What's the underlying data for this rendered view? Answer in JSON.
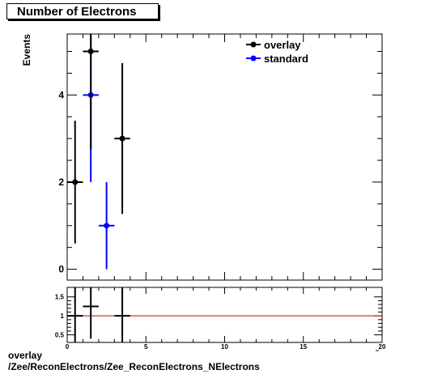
{
  "title": "Number of Electrons",
  "footer": {
    "line1": "overlay",
    "line2": "/Zee/ReconElectrons/Zee_ReconElectrons_NElectrons"
  },
  "chart_data": [
    {
      "type": "scatter",
      "title": "Number of Electrons",
      "ylabel": "Events",
      "xlim": [
        0,
        20
      ],
      "ylim": [
        -0.25,
        5.4
      ],
      "y_ticks": [
        0,
        2,
        4
      ],
      "legend_placement": "top-right",
      "series": [
        {
          "name": "overlay",
          "color": "#000000",
          "points": [
            {
              "x": 0.5,
              "xerr": 0.5,
              "y": 2,
              "yerr_low": 1.41,
              "yerr_high": 1.41
            },
            {
              "x": 1.5,
              "xerr": 0.5,
              "y": 5,
              "yerr_low": 2.24,
              "yerr_high": 2.24
            },
            {
              "x": 3.5,
              "xerr": 0.5,
              "y": 3,
              "yerr_low": 1.73,
              "yerr_high": 1.73
            }
          ]
        },
        {
          "name": "standard",
          "color": "#0000ff",
          "points": [
            {
              "x": 1.5,
              "xerr": 0.5,
              "y": 4,
              "yerr_low": 2,
              "yerr_high": 2
            },
            {
              "x": 2.5,
              "xerr": 0.5,
              "y": 1,
              "yerr_low": 1,
              "yerr_high": 1
            }
          ]
        }
      ]
    },
    {
      "type": "scatter",
      "xlim": [
        0,
        20
      ],
      "ylim": [
        0.3,
        1.75
      ],
      "x_ticks": [
        0,
        5,
        10,
        15,
        20
      ],
      "y_ticks": [
        0.5,
        1,
        1.5
      ],
      "reference_line": {
        "y": 1,
        "color": "#cc0000"
      },
      "series": [
        {
          "color": "#000000",
          "points": [
            {
              "x": 0.5,
              "xerr": 0.5,
              "y": 1.0,
              "yerr_low": 1.0,
              "yerr_high": 1.0
            },
            {
              "x": 1.5,
              "xerr": 0.5,
              "y": 1.25,
              "yerr_low": 0.85,
              "yerr_high": 0.85
            },
            {
              "x": 3.5,
              "xerr": 0.5,
              "y": 1.0,
              "yerr_low": 1.0,
              "yerr_high": 1.0
            }
          ]
        }
      ]
    }
  ]
}
